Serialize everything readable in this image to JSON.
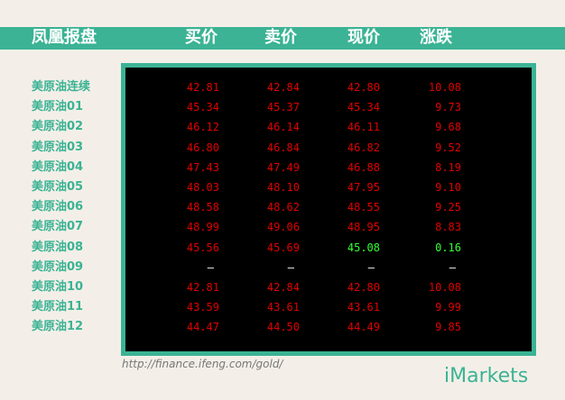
{
  "header": {
    "title": "凤凰报盘",
    "columns": [
      "买价",
      "卖价",
      "现价",
      "涨跌"
    ]
  },
  "table": {
    "rows": [
      [
        "美原油连续",
        "42.81",
        "42.84",
        "42.80",
        "10.08"
      ],
      [
        "美原油01",
        "45.34",
        "45.37",
        "45.34",
        "9.73"
      ],
      [
        "美原油02",
        "46.12",
        "46.14",
        "46.11",
        "9.68"
      ],
      [
        "美原油03",
        "46.80",
        "46.84",
        "46.82",
        "9.52"
      ],
      [
        "美原油04",
        "47.43",
        "47.49",
        "46.88",
        "8.19"
      ],
      [
        "美原油05",
        "48.03",
        "48.10",
        "47.95",
        "9.10"
      ],
      [
        "美原油06",
        "48.58",
        "48.62",
        "48.55",
        "9.25"
      ],
      [
        "美原油07",
        "48.99",
        "49.06",
        "48.95",
        "8.83"
      ],
      [
        "美原油08",
        "45.56",
        "45.69",
        "45.08",
        "0.16"
      ],
      [
        "美原油09",
        "—",
        "—",
        "—",
        "—"
      ],
      [
        "美原油10",
        "42.81",
        "42.84",
        "42.80",
        "10.08"
      ],
      [
        "美原油11",
        "43.59",
        "43.61",
        "43.61",
        "9.99"
      ],
      [
        "美原油12",
        "44.47",
        "44.50",
        "44.49",
        "9.85"
      ]
    ],
    "value_color": "#e00000",
    "blank_color": "#ffffff",
    "highlight": {
      "color": "#33ff33",
      "cells": [
        [
          8,
          3
        ],
        [
          8,
          4
        ]
      ]
    }
  },
  "footer": {
    "link": "http://finance.ifeng.com/gold/",
    "brand": "iMarkets"
  }
}
